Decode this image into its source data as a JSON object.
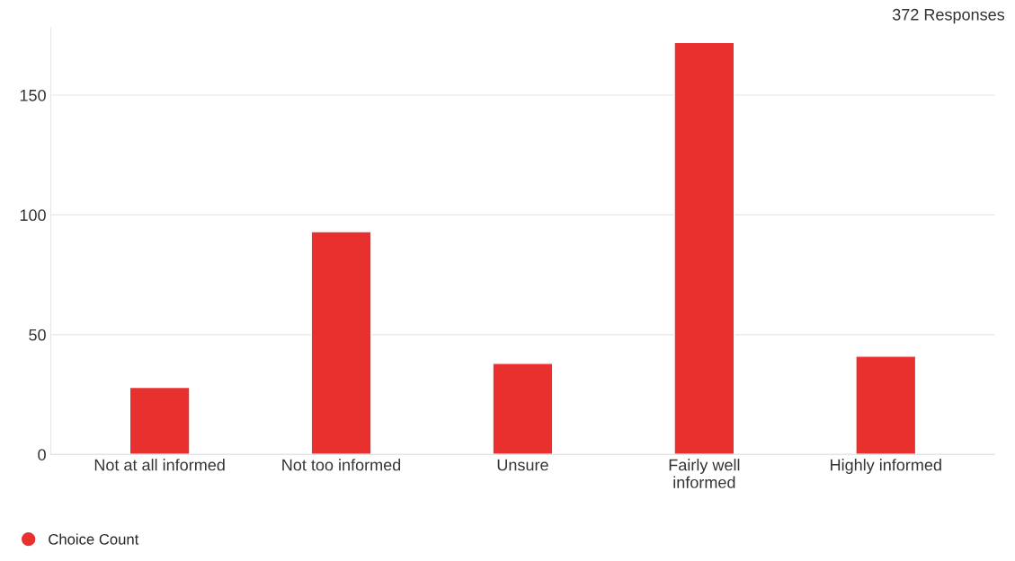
{
  "chart_data": {
    "type": "bar",
    "categories": [
      "Not at all informed",
      "Not too informed",
      "Unsure",
      "Fairly well\ninformed",
      "Highly informed"
    ],
    "series": [
      {
        "name": "Choice Count",
        "color": "#e8302e",
        "values": [
          28,
          93,
          38,
          172,
          41
        ]
      }
    ],
    "ylim": [
      0,
      178
    ],
    "yticks": [
      0,
      50,
      100,
      150
    ],
    "grid": "y",
    "legend": "bottom left",
    "marker": "circle",
    "annotations": [
      "372 Responses"
    ]
  }
}
